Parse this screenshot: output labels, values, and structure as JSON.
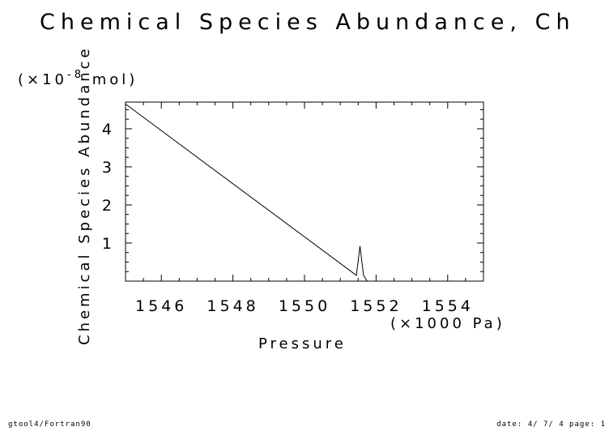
{
  "chart_data": {
    "type": "line",
    "title": "Chemical Species Abundance, Ch",
    "xlabel": "Pressure",
    "ylabel": "Chemical Species Abundance",
    "x_unit": "(×1000 Pa)",
    "y_unit_prefix": "(×10",
    "y_unit_exp": "-8",
    "y_unit_suffix": " mol)",
    "xlim": [
      1545,
      1555
    ],
    "ylim": [
      0,
      4.7
    ],
    "x_ticks": [
      1546,
      1548,
      1550,
      1552,
      1554
    ],
    "x_tick_labels": [
      "1546",
      "1548",
      "1550",
      "1552",
      "1554"
    ],
    "y_ticks": [
      1,
      2,
      3,
      4
    ],
    "y_tick_labels": [
      "1",
      "2",
      "3",
      "4"
    ],
    "grid": false,
    "series": [
      {
        "x": [
          1545.0,
          1551.45,
          1551.55,
          1551.65,
          1551.75,
          1555.0
        ],
        "y": [
          4.65,
          0.15,
          0.92,
          0.15,
          0.0,
          0.0
        ]
      }
    ]
  },
  "footer": {
    "left": "gtool4/Fortran90",
    "right": "date: 4/ 7/ 4 page: 1"
  }
}
